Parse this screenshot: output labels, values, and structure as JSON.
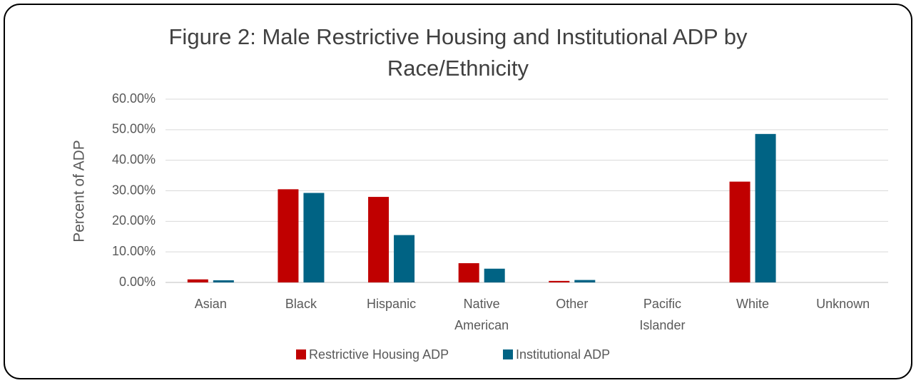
{
  "chart_data": {
    "type": "bar",
    "title": "Figure 2: Male Restrictive Housing and Institutional ADP by Race/Ethnicity",
    "y_label": "Percent of ADP",
    "categories": [
      "Asian",
      "Black",
      "Hispanic",
      "Native American",
      "Other",
      "Pacific Islander",
      "White",
      "Unknown"
    ],
    "series": [
      {
        "name": "Restrictive Housing ADP",
        "color": "#c00000",
        "values": [
          1.0,
          30.5,
          28.0,
          6.3,
          0.5,
          0,
          33.0,
          0
        ]
      },
      {
        "name": "Institutional ADP",
        "color": "#006384",
        "values": [
          0.7,
          29.3,
          15.5,
          4.5,
          0.8,
          0,
          48.6,
          0
        ]
      }
    ],
    "ylim": [
      0,
      60
    ],
    "yticks": [
      {
        "value": 0,
        "label": "0.00%"
      },
      {
        "value": 10,
        "label": "10.00%"
      },
      {
        "value": 20,
        "label": "20.00%"
      },
      {
        "value": 30,
        "label": "30.00%"
      },
      {
        "value": 40,
        "label": "40.00%"
      },
      {
        "value": 50,
        "label": "50.00%"
      },
      {
        "value": 60,
        "label": "60.00%"
      }
    ],
    "grid": true,
    "legend": "bottom"
  }
}
